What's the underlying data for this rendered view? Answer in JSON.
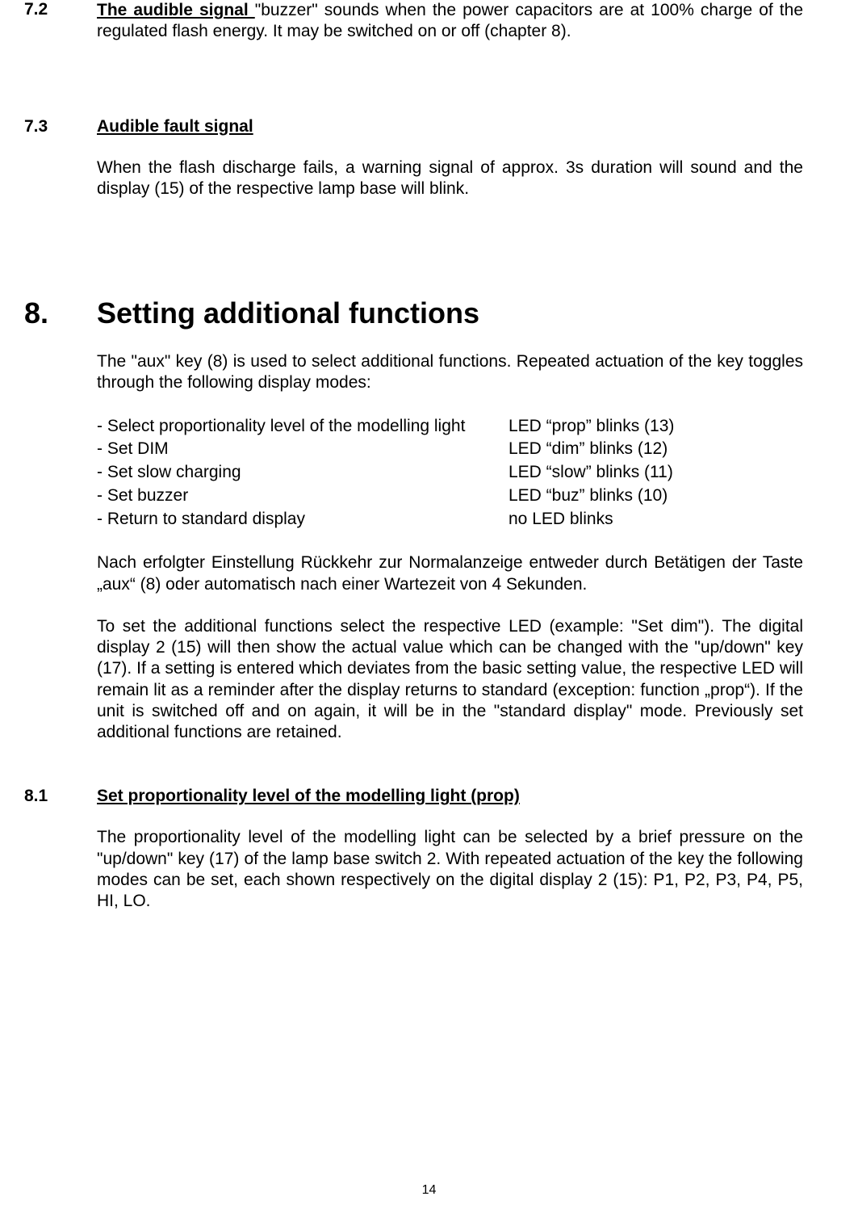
{
  "section_7_2": {
    "number": "7.2",
    "title_underlined": "The audible signal ",
    "rest": "\"buzzer\" sounds when the power capacitors are at 100% charge of the regulated flash energy. It may be switched on or off (chapter 8)."
  },
  "section_7_3": {
    "number": "7.3",
    "title": "Audible fault signal",
    "body": "When the flash discharge fails, a warning signal of approx. 3s duration will sound and the display (15) of the respective lamp base will blink."
  },
  "section_8": {
    "number": "8.",
    "title": "Setting additional functions",
    "intro": "The \"aux\" key (8) is used to select additional functions. Repeated actuation of the key toggles through the following display modes:",
    "modes": [
      {
        "left": "- Select proportionality level of the modelling light",
        "right": "LED “prop” blinks (13)"
      },
      {
        "left": "- Set DIM",
        "right": "LED “dim” blinks (12)"
      },
      {
        "left": "- Set slow charging",
        "right": "LED “slow” blinks (11)"
      },
      {
        "left": "- Set buzzer",
        "right": "LED “buz” blinks (10)"
      },
      {
        "left": "- Return to standard display",
        "right": "no LED blinks"
      }
    ],
    "german_note": "Nach erfolgter Einstellung Rückkehr zur Normalanzeige entweder durch Betätigen der Taste „aux“ (8) oder automatisch nach einer Wartezeit von 4 Sekunden.",
    "detail": "To set the additional functions select the respective LED (example: \"Set dim\"). The digital display 2 (15) will then show the actual value which can be changed with the \"up/down\" key (17). If a setting is entered which deviates from the basic setting value, the respective LED will remain lit as a reminder after the display returns to standard (exception: function „prop“). If the unit is switched off and on again, it will be in the \"standard display\" mode. Previously set additional functions are retained."
  },
  "section_8_1": {
    "number": "8.1",
    "title": "Set proportionality level of the modelling light (prop)",
    "body": "The proportionality level of the modelling light can be selected by a brief pressure on the \"up/down\" key (17) of the lamp base switch 2. With repeated actuation of the key the following modes can be set, each shown respectively on the digital display 2 (15): P1, P2, P3, P4, P5, HI, LO."
  },
  "page_number": "14"
}
